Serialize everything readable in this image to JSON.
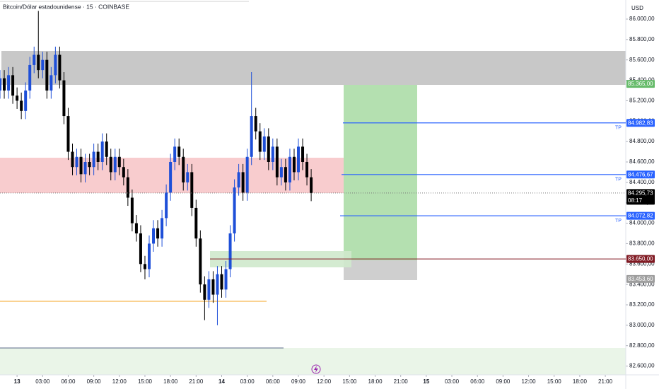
{
  "chart_data": {
    "type": "candlestick",
    "title": "Bitcoin/Dólar estadounidense · 15 · COINBASE",
    "currency": "USD",
    "x": [
      -2,
      -1.5,
      -1,
      -0.5,
      0,
      0.5,
      1,
      1.5,
      2,
      2.5,
      3,
      3.5,
      4,
      4.5,
      5,
      5.5,
      6,
      6.5,
      7,
      7.5,
      8,
      8.5,
      9,
      9.5,
      10,
      10.5,
      11,
      11.5,
      12,
      12.5,
      13,
      13.5,
      14,
      14.5,
      15,
      15.5,
      16,
      16.5,
      17,
      17.5,
      18,
      18.5,
      19,
      19.5,
      20,
      20.5,
      21,
      21.5,
      22,
      22.5,
      23,
      23.5,
      24,
      24.5,
      25,
      25.5,
      26,
      26.5,
      27,
      27.5,
      28,
      28.5,
      29,
      29.5,
      30,
      30.5,
      31,
      31.5,
      32,
      32.5,
      33,
      33.5,
      34,
      34.5
    ],
    "open": [
      85300,
      85420,
      85300,
      85450,
      85250,
      85200,
      85100,
      85300,
      85550,
      85650,
      85500,
      85600,
      85300,
      85450,
      85650,
      85400,
      85050,
      84700,
      84550,
      84650,
      84480,
      84600,
      84550,
      84700,
      84600,
      84800,
      84650,
      84500,
      84650,
      84550,
      84450,
      84250,
      84000,
      83900,
      83600,
      83550,
      83800,
      83950,
      83850,
      84050,
      84300,
      84600,
      84750,
      84650,
      84400,
      84500,
      84150,
      83850,
      83400,
      83250,
      83450,
      83300,
      83500,
      83350,
      83550,
      83900,
      84350,
      84500,
      84300,
      84650,
      85050,
      84900,
      84700,
      84850,
      84600,
      84750,
      84450,
      84550,
      84400,
      84650,
      84500,
      84750,
      84600,
      84450
    ],
    "high": [
      85500,
      85500,
      85530,
      85530,
      85330,
      85280,
      85380,
      85630,
      85730,
      86080,
      85680,
      85680,
      85530,
      85730,
      85730,
      85480,
      85130,
      84780,
      84730,
      84730,
      84680,
      84680,
      84780,
      84780,
      84880,
      84880,
      84730,
      84730,
      84730,
      84630,
      84530,
      84330,
      84080,
      83980,
      83680,
      83880,
      84030,
      84030,
      84130,
      84380,
      84680,
      84830,
      84830,
      84730,
      84580,
      84580,
      84230,
      83930,
      83480,
      83530,
      83530,
      83580,
      83580,
      83630,
      83980,
      84430,
      84580,
      84580,
      84730,
      85480,
      85130,
      84980,
      84930,
      84930,
      84830,
      84830,
      84630,
      84630,
      84730,
      84730,
      84830,
      84830,
      84680,
      84530
    ],
    "low": [
      85220,
      85220,
      85220,
      85170,
      85120,
      85020,
      85020,
      85220,
      85470,
      85420,
      85420,
      85220,
      85220,
      85370,
      85320,
      84970,
      84620,
      84470,
      84470,
      84400,
      84400,
      84470,
      84470,
      84520,
      84520,
      84570,
      84420,
      84420,
      84470,
      84370,
      84170,
      83920,
      83820,
      83520,
      83450,
      83470,
      83720,
      83770,
      83770,
      83970,
      84220,
      84520,
      84570,
      84320,
      84320,
      84070,
      83770,
      83320,
      83050,
      83170,
      83220,
      83000,
      83270,
      83270,
      83470,
      83820,
      84270,
      84220,
      84220,
      84570,
      84820,
      84620,
      84620,
      84520,
      84520,
      84370,
      84370,
      84320,
      84320,
      84420,
      84420,
      84520,
      84370,
      84216
    ],
    "close": [
      85420,
      85300,
      85450,
      85250,
      85200,
      85100,
      85300,
      85550,
      85650,
      85500,
      85600,
      85300,
      85450,
      85650,
      85400,
      85050,
      84700,
      84550,
      84650,
      84480,
      84600,
      84550,
      84700,
      84600,
      84800,
      84650,
      84500,
      84650,
      84550,
      84450,
      84250,
      84000,
      83900,
      83600,
      83550,
      83800,
      83950,
      83850,
      84050,
      84300,
      84600,
      84750,
      84650,
      84400,
      84500,
      84150,
      83850,
      83400,
      83250,
      83450,
      83300,
      83500,
      83350,
      83550,
      83900,
      84350,
      84500,
      84300,
      84650,
      85050,
      84900,
      84700,
      84850,
      84600,
      84750,
      84450,
      84550,
      84400,
      84650,
      84500,
      84750,
      84600,
      84450,
      84296
    ],
    "up_color": "#1e4fd8",
    "down_color": "#000000",
    "xlim": [
      -2,
      71.4
    ],
    "xticks": [
      {
        "value": 0,
        "label": "13"
      },
      {
        "value": 3,
        "label": "03:00"
      },
      {
        "value": 6,
        "label": "06:00"
      },
      {
        "value": 9,
        "label": "09:00"
      },
      {
        "value": 12,
        "label": "12:00"
      },
      {
        "value": 15,
        "label": "15:00"
      },
      {
        "value": 18,
        "label": "18:00"
      },
      {
        "value": 21,
        "label": "21:00"
      },
      {
        "value": 24,
        "label": "14"
      },
      {
        "value": 27,
        "label": "03:00"
      },
      {
        "value": 30,
        "label": "06:00"
      },
      {
        "value": 33,
        "label": "09:00"
      },
      {
        "value": 36,
        "label": "12:00"
      },
      {
        "value": 39,
        "label": "15:00"
      },
      {
        "value": 42,
        "label": "18:00"
      },
      {
        "value": 45,
        "label": "21:00"
      },
      {
        "value": 48,
        "label": "15"
      },
      {
        "value": 51,
        "label": "03:00"
      },
      {
        "value": 54,
        "label": "06:00"
      },
      {
        "value": 57,
        "label": "09:00"
      },
      {
        "value": 60,
        "label": "12:00"
      },
      {
        "value": 63,
        "label": "15:00"
      },
      {
        "value": 66,
        "label": "18:00"
      },
      {
        "value": 69,
        "label": "21:00"
      }
    ],
    "ylim": [
      82514,
      86187
    ],
    "yticks": [
      {
        "value": 82600,
        "label": "82.600,00"
      },
      {
        "value": 82800,
        "label": "82.800,00"
      },
      {
        "value": 83000,
        "label": "83.000,00"
      },
      {
        "value": 83200,
        "label": "83.200,00"
      },
      {
        "value": 83400,
        "label": "83.400,00"
      },
      {
        "value": 83600,
        "label": "83.600,00"
      },
      {
        "value": 83800,
        "label": "83.800,00"
      },
      {
        "value": 84000,
        "label": "84.000,00"
      },
      {
        "value": 84200,
        "label": "84.200,00"
      },
      {
        "value": 84400,
        "label": "84.400,00"
      },
      {
        "value": 84600,
        "label": "84.600,00"
      },
      {
        "value": 84800,
        "label": "84.800,00"
      },
      {
        "value": 85000,
        "label": "85.000,00"
      },
      {
        "value": 85200,
        "label": "85.200,00"
      },
      {
        "value": 85400,
        "label": "85.400,00"
      },
      {
        "value": 85600,
        "label": "85.600,00"
      },
      {
        "value": 85800,
        "label": "85.800,00"
      },
      {
        "value": 86000,
        "label": "86.000,00"
      }
    ],
    "price_tags": [
      {
        "value": 85365,
        "label": "85.365,00",
        "color": "#66bb6a"
      },
      {
        "value": 84982.83,
        "label": "84.982,83",
        "color": "#2962ff",
        "marker": "TP"
      },
      {
        "value": 84476.67,
        "label": "84.476,67",
        "color": "#2962ff",
        "marker": "TP"
      },
      {
        "value": 84072.82,
        "label": "84.072,82",
        "color": "#2962ff",
        "marker": "TP"
      },
      {
        "value": 83650,
        "label": "83.650,00",
        "color": "#9e9e9e"
      },
      {
        "value": 83650,
        "label": "83.650,00",
        "color": "#801922"
      },
      {
        "value": 83453.6,
        "label": "83.453,60",
        "color": "#9e9e9e"
      },
      {
        "value": 84295.73,
        "label": "84.295,73",
        "color": "#000000",
        "countdown": "08:17"
      }
    ]
  }
}
